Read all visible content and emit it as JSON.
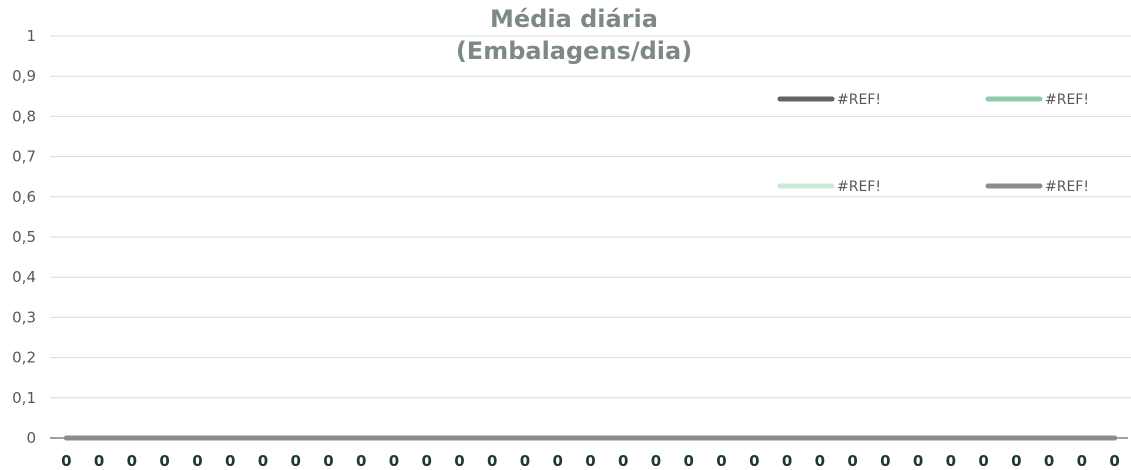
{
  "chart_data": {
    "type": "line",
    "title": [
      "Média diária",
      "(Embalagens/dia)"
    ],
    "xlabel": "",
    "ylabel": "",
    "ylim": [
      0,
      1
    ],
    "yticks": [
      "0",
      "0,1",
      "0,2",
      "0,3",
      "0,4",
      "0,5",
      "0,6",
      "0,7",
      "0,8",
      "0,9",
      "1"
    ],
    "grid": true,
    "legend_placement": "top-right",
    "categories": [
      "0",
      "0",
      "0",
      "0",
      "0",
      "0",
      "0",
      "0",
      "0",
      "0",
      "0",
      "0",
      "0",
      "0",
      "0",
      "0",
      "0",
      "0",
      "0",
      "0",
      "0",
      "0",
      "0",
      "0",
      "0",
      "0",
      "0",
      "0",
      "0",
      "0",
      "0",
      "0",
      "0"
    ],
    "series": [
      {
        "name": "#REF!",
        "color": "#5f6461",
        "values": [
          0,
          0,
          0,
          0,
          0,
          0,
          0,
          0,
          0,
          0,
          0,
          0,
          0,
          0,
          0,
          0,
          0,
          0,
          0,
          0,
          0,
          0,
          0,
          0,
          0,
          0,
          0,
          0,
          0,
          0,
          0,
          0,
          0
        ]
      },
      {
        "name": "#REF!",
        "color": "#8ccca6",
        "values": [
          0,
          0,
          0,
          0,
          0,
          0,
          0,
          0,
          0,
          0,
          0,
          0,
          0,
          0,
          0,
          0,
          0,
          0,
          0,
          0,
          0,
          0,
          0,
          0,
          0,
          0,
          0,
          0,
          0,
          0,
          0,
          0,
          0
        ]
      },
      {
        "name": "#REF!",
        "color": "#cde9d8",
        "values": [
          0,
          0,
          0,
          0,
          0,
          0,
          0,
          0,
          0,
          0,
          0,
          0,
          0,
          0,
          0,
          0,
          0,
          0,
          0,
          0,
          0,
          0,
          0,
          0,
          0,
          0,
          0,
          0,
          0,
          0,
          0,
          0,
          0
        ]
      },
      {
        "name": "#REF!",
        "color": "#8c8c8c",
        "values": [
          0,
          0,
          0,
          0,
          0,
          0,
          0,
          0,
          0,
          0,
          0,
          0,
          0,
          0,
          0,
          0,
          0,
          0,
          0,
          0,
          0,
          0,
          0,
          0,
          0,
          0,
          0,
          0,
          0,
          0,
          0,
          0,
          0
        ]
      }
    ]
  }
}
